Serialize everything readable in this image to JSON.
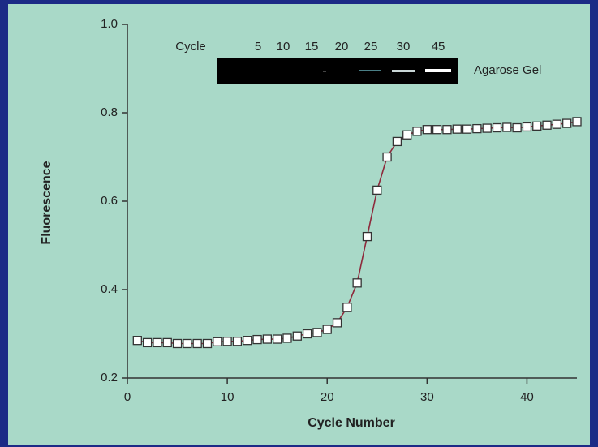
{
  "chart_data": {
    "type": "line",
    "x_label": "Cycle Number",
    "y_label": "Fluorescence",
    "x": [
      1,
      2,
      3,
      4,
      5,
      6,
      7,
      8,
      9,
      10,
      11,
      12,
      13,
      14,
      15,
      16,
      17,
      18,
      19,
      20,
      21,
      22,
      23,
      24,
      25,
      26,
      27,
      28,
      29,
      30,
      31,
      32,
      33,
      34,
      35,
      36,
      37,
      38,
      39,
      40,
      41,
      42,
      43,
      44,
      45
    ],
    "series": [
      {
        "color": "#8e2a3c",
        "values": [
          0.285,
          0.28,
          0.28,
          0.28,
          0.278,
          0.278,
          0.278,
          0.278,
          0.282,
          0.283,
          0.283,
          0.285,
          0.287,
          0.288,
          0.288,
          0.29,
          0.295,
          0.3,
          0.303,
          0.31,
          0.325,
          0.36,
          0.415,
          0.52,
          0.625,
          0.7,
          0.735,
          0.75,
          0.758,
          0.762,
          0.762,
          0.762,
          0.763,
          0.763,
          0.764,
          0.765,
          0.766,
          0.767,
          0.766,
          0.768,
          0.77,
          0.772,
          0.774,
          0.776,
          0.78
        ]
      }
    ],
    "xlim": [
      0,
      45
    ],
    "xticks": [
      0,
      10,
      20,
      30,
      40
    ],
    "ylim": [
      0.2,
      1.0
    ],
    "yticks": [
      0.2,
      0.4,
      0.6,
      0.8,
      {
        "value": 1.0,
        "label": "1.0"
      }
    ],
    "grid": false,
    "gel_inset": {
      "row_label": "Cycle",
      "lanes": [
        5,
        10,
        15,
        20,
        25,
        30,
        45
      ],
      "caption": "Agarose Gel"
    }
  }
}
